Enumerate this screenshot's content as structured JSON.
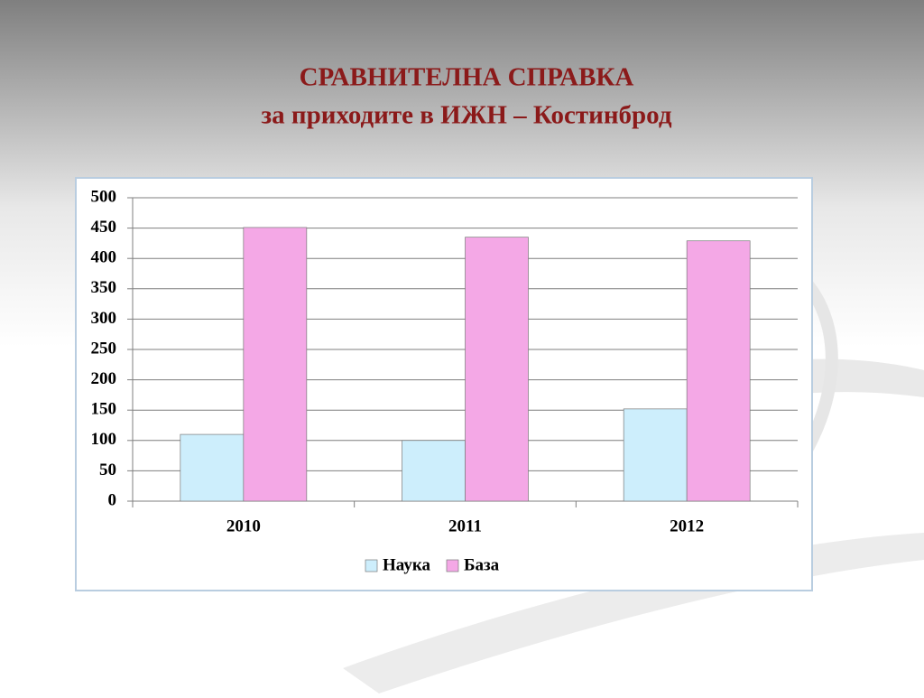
{
  "chart_data": {
    "type": "bar",
    "title": "СРАВНИТЕЛНА СПРАВКА",
    "subtitle": "за приходите в ИЖН – Костинброд",
    "categories": [
      "2010",
      "2011",
      "2012"
    ],
    "series": [
      {
        "name": "Наука",
        "color": "#cdeefc",
        "values": [
          110,
          100,
          152
        ]
      },
      {
        "name": "База",
        "color": "#f4a8e6",
        "values": [
          451,
          435,
          429
        ]
      }
    ],
    "ylim": [
      0,
      500
    ],
    "yticks": [
      0,
      50,
      100,
      150,
      200,
      250,
      300,
      350,
      400,
      450,
      500
    ],
    "grid": true,
    "legend": "bottom"
  }
}
